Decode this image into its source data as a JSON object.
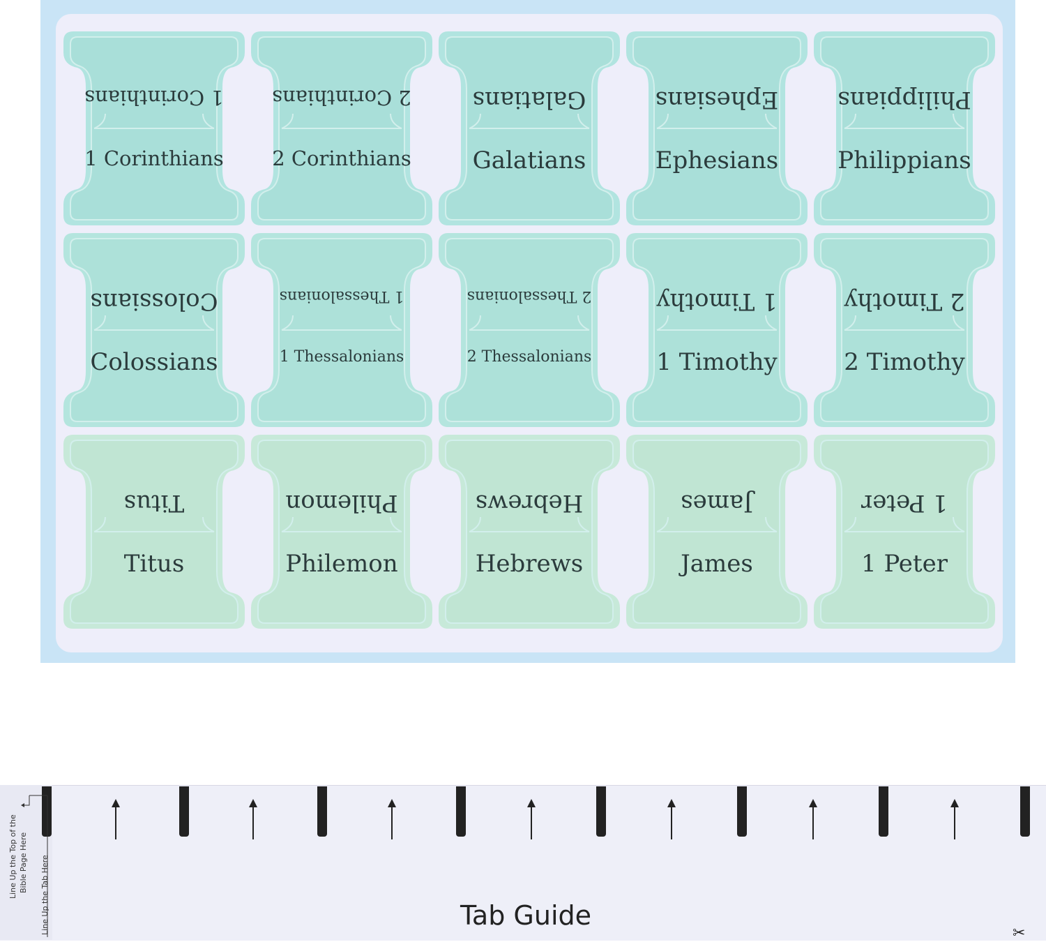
{
  "tabs": [
    {
      "label": "1 Corinthians",
      "size": "sz-md",
      "color": "#b1e4e0",
      "inner": "#a9dfd9"
    },
    {
      "label": "2 Corinthians",
      "size": "sz-md",
      "color": "#b1e4e0",
      "inner": "#a9dfd9"
    },
    {
      "label": "Galatians",
      "size": "sz-lg",
      "color": "#b1e4e0",
      "inner": "#a9dfd9"
    },
    {
      "label": "Ephesians",
      "size": "sz-lg",
      "color": "#b1e4e0",
      "inner": "#a9dfd9"
    },
    {
      "label": "Philippians",
      "size": "sz-lg",
      "color": "#b1e4e0",
      "inner": "#a9dfd9"
    },
    {
      "label": "Colossians",
      "size": "sz-lg",
      "color": "#b4e5de",
      "inner": "#ade1d9"
    },
    {
      "label": "1 Thessalonians",
      "size": "sz-xs",
      "color": "#b4e5de",
      "inner": "#ade1d9"
    },
    {
      "label": "2 Thessalonians",
      "size": "sz-xs",
      "color": "#b4e5de",
      "inner": "#ade1d9"
    },
    {
      "label": "1 Timothy",
      "size": "sz-lg",
      "color": "#b4e5de",
      "inner": "#ade1d9"
    },
    {
      "label": "2 Timothy",
      "size": "sz-lg",
      "color": "#b4e5de",
      "inner": "#ade1d9"
    },
    {
      "label": "Titus",
      "size": "sz-lg",
      "color": "#c7e9d9",
      "inner": "#c0e5d3"
    },
    {
      "label": "Philemon",
      "size": "sz-lg",
      "color": "#c7e9d9",
      "inner": "#c0e5d3"
    },
    {
      "label": "Hebrews",
      "size": "sz-lg",
      "color": "#c7e9d9",
      "inner": "#c0e5d3"
    },
    {
      "label": "James",
      "size": "sz-lg",
      "color": "#c7e9d9",
      "inner": "#c0e5d3"
    },
    {
      "label": "1 Peter",
      "size": "sz-lg",
      "color": "#c7e9d9",
      "inner": "#c0e5d3"
    }
  ],
  "tab_guide": {
    "title": "Tab Guide",
    "side_text_1": "Line Up the Top of the",
    "side_text_2": "Bible Page Here",
    "side_text_3": "Line Up the Tab Here"
  }
}
